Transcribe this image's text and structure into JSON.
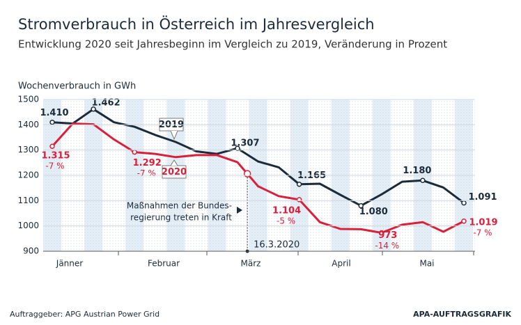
{
  "chart_data": {
    "type": "line",
    "title": "Stromverbrauch in Österreich im Jahresvergleich",
    "subtitle": "Entwicklung 2020 seit Jahresbeginn im Vergleich zu 2019, Veränderung in Prozent",
    "y_label": "Wochenverbrauch in GWh",
    "categories": [
      null,
      null,
      null,
      null,
      null,
      null,
      null,
      null,
      null,
      null,
      null,
      null,
      null,
      null,
      null,
      null,
      null,
      null,
      null,
      null,
      null
    ],
    "months": [
      "Jänner",
      "Februar",
      "März",
      "April",
      "Mai"
    ],
    "ylim": [
      900,
      1500
    ],
    "yticks": [
      900,
      1000,
      1100,
      1200,
      1300,
      1400,
      1500
    ],
    "grid": true,
    "series": [
      {
        "name": "2019",
        "color": "#1c2b39",
        "values": [
          1410,
          1405,
          1462,
          1410,
          1392,
          1360,
          1332,
          1295,
          1285,
          1307,
          1255,
          1232,
          1165,
          1167,
          1123,
          1080,
          1125,
          1175,
          1180,
          1152,
          1091
        ],
        "value_labels": [
          "1.410",
          null,
          "1.462",
          null,
          null,
          null,
          null,
          null,
          null,
          "1.307",
          null,
          null,
          "1.165",
          null,
          null,
          "1.080",
          null,
          null,
          "1.180",
          null,
          "1.091"
        ]
      },
      {
        "name": "2020",
        "color": "#d9203a",
        "values": [
          1315,
          1405,
          1402,
          1342,
          1292,
          1285,
          1272,
          1280,
          1280,
          1252,
          1157,
          1118,
          1104,
          1015,
          988,
          987,
          973,
          1005,
          1015,
          977,
          1019
        ],
        "value_labels": [
          "1.315",
          null,
          null,
          null,
          "1.292",
          null,
          null,
          null,
          null,
          null,
          null,
          null,
          "1.104",
          null,
          null,
          null,
          "973",
          null,
          null,
          null,
          "1.019"
        ],
        "change_labels": [
          "-7 %",
          null,
          null,
          null,
          "-7 %",
          null,
          null,
          null,
          null,
          null,
          null,
          null,
          "-5 %",
          null,
          null,
          null,
          "-14 %",
          null,
          null,
          null,
          "-7 %"
        ]
      }
    ],
    "annotation": {
      "text_lines": [
        "Maßnahmen der Bundes-",
        "regierung treten in Kraft"
      ],
      "date": "16.3.2020"
    },
    "source": "Auftraggeber: APG Austrian Power Grid",
    "credit": "APA-AUFTRAGSGRAFIK"
  }
}
